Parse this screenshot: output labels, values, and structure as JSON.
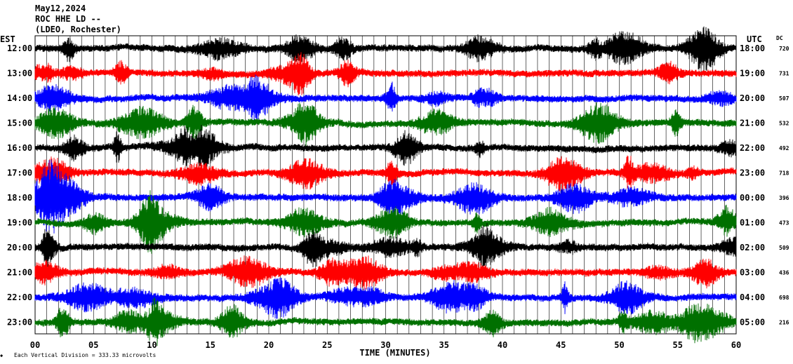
{
  "header": {
    "date": "May12,2024",
    "station": "ROC HHE LD --",
    "location": "(LDEO, Rochester)"
  },
  "left_zone": "EST",
  "right_zone": "UTC",
  "dc_label": "DC",
  "xlabel": "TIME (MINUTES)",
  "footer_note": "Each Vertical Division =  333.33 microvolts",
  "colors": {
    "cycle": [
      "#000000",
      "#ff0000",
      "#0000ff",
      "#007000"
    ],
    "grid": "#000000"
  },
  "chart_data": {
    "type": "line",
    "x_range": [
      0,
      60
    ],
    "x_ticks": [
      "00",
      "05",
      "10",
      "15",
      "20",
      "25",
      "30",
      "35",
      "40",
      "45",
      "50",
      "55",
      "60"
    ],
    "grid": "vertical every minute",
    "rows": [
      {
        "local": "12:00",
        "utc": "18:00",
        "dc": "720",
        "color": "#000000"
      },
      {
        "local": "13:00",
        "utc": "19:00",
        "dc": "731",
        "color": "#ff0000"
      },
      {
        "local": "14:00",
        "utc": "20:00",
        "dc": "507",
        "color": "#0000ff"
      },
      {
        "local": "15:00",
        "utc": "21:00",
        "dc": "532",
        "color": "#007000"
      },
      {
        "local": "16:00",
        "utc": "22:00",
        "dc": "492",
        "color": "#000000"
      },
      {
        "local": "17:00",
        "utc": "23:00",
        "dc": "718",
        "color": "#ff0000"
      },
      {
        "local": "18:00",
        "utc": "00:00",
        "dc": "396",
        "color": "#0000ff"
      },
      {
        "local": "19:00",
        "utc": "01:00",
        "dc": "473",
        "color": "#007000"
      },
      {
        "local": "20:00",
        "utc": "02:00",
        "dc": "509",
        "color": "#000000"
      },
      {
        "local": "21:00",
        "utc": "03:00",
        "dc": "436",
        "color": "#ff0000"
      },
      {
        "local": "22:00",
        "utc": "04:00",
        "dc": "698",
        "color": "#0000ff"
      },
      {
        "local": "23:00",
        "utc": "05:00",
        "dc": "216",
        "color": "#007000"
      }
    ]
  }
}
